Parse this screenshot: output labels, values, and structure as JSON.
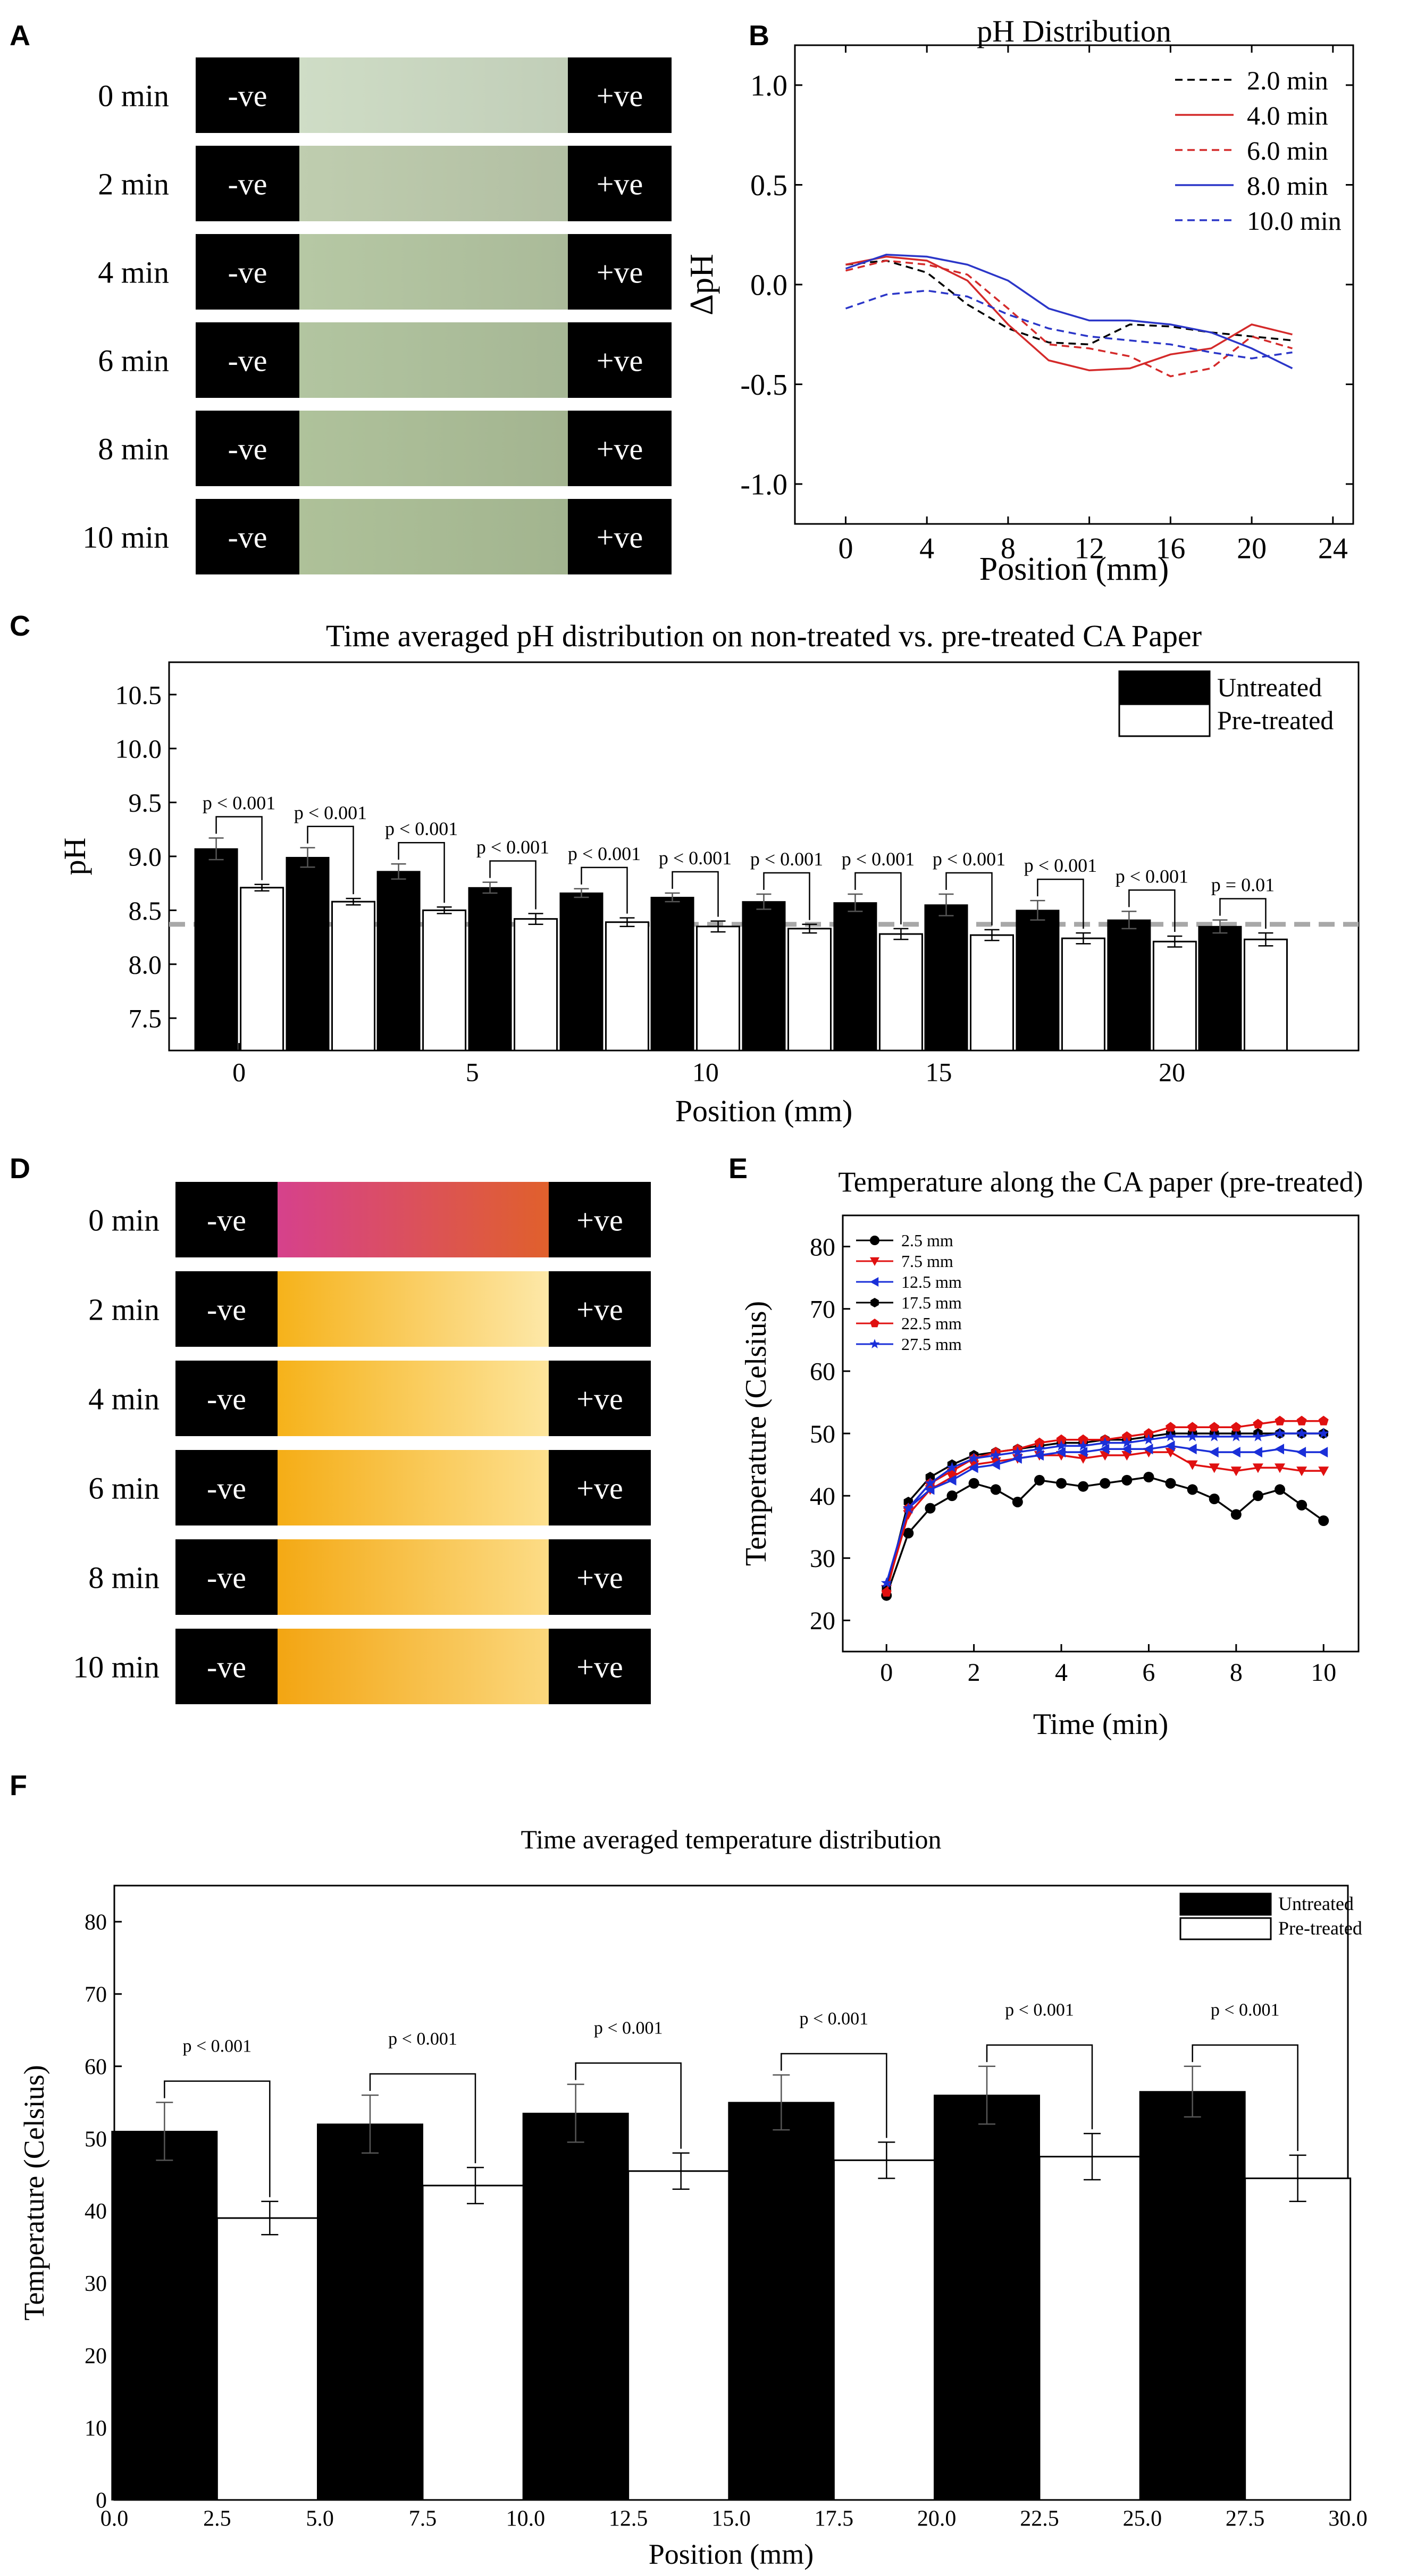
{
  "panel_letters": {
    "a": "A",
    "b": "B",
    "c": "C",
    "d": "D",
    "e": "E",
    "f": "F"
  },
  "strips": {
    "neg_label": "-ve",
    "pos_label": "+ve",
    "times": [
      "0 min",
      "2 min",
      "4 min",
      "6 min",
      "8 min",
      "10 min"
    ],
    "ph_strip_colors": [
      "#c9d7c0",
      "#b9c7aa",
      "#b1c29f",
      "#adbf9b",
      "#aabc96",
      "#a9bb95"
    ],
    "thermal_strip_colors": [
      [
        "#d6418c",
        "#e0602c"
      ],
      [
        "#f6b21a",
        "#fde8a8"
      ],
      [
        "#f6b21a",
        "#fde59c"
      ],
      [
        "#f5ad16",
        "#fde08e"
      ],
      [
        "#f4a914",
        "#fcdc86"
      ],
      [
        "#f3a512",
        "#fbd77c"
      ]
    ]
  },
  "chart_data": [
    {
      "panel": "B",
      "type": "line",
      "title": "pH Distribution",
      "xlabel": "Position (mm)",
      "ylabel": "ΔpH",
      "xlim": [
        -2.5,
        25
      ],
      "ylim": [
        -1.2,
        1.2
      ],
      "xticks": [
        0,
        4,
        8,
        12,
        16,
        20,
        24
      ],
      "yticks": [
        1.0,
        0.5,
        0.0,
        -0.5,
        -1.0
      ],
      "ytick_labels": [
        "1.0",
        "0.5",
        "0.0",
        "-0.5",
        "-1.0"
      ],
      "legend_position": "top-right",
      "series": [
        {
          "name": "2.0 min",
          "color": "#000000",
          "dash": true,
          "x": [
            0,
            2,
            4,
            6,
            8,
            10,
            12,
            14,
            16,
            18,
            20,
            22
          ],
          "y": [
            0.1,
            0.12,
            0.06,
            -0.1,
            -0.22,
            -0.29,
            -0.3,
            -0.2,
            -0.21,
            -0.24,
            -0.26,
            -0.28
          ]
        },
        {
          "name": "4.0 min",
          "color": "#d42a2a",
          "dash": false,
          "x": [
            0,
            2,
            4,
            6,
            8,
            10,
            12,
            14,
            16,
            18,
            20,
            22
          ],
          "y": [
            0.1,
            0.14,
            0.12,
            0.02,
            -0.2,
            -0.38,
            -0.43,
            -0.42,
            -0.35,
            -0.32,
            -0.2,
            -0.25
          ]
        },
        {
          "name": "6.0 min",
          "color": "#d42a2a",
          "dash": true,
          "x": [
            0,
            2,
            4,
            6,
            8,
            10,
            12,
            14,
            16,
            18,
            20,
            22
          ],
          "y": [
            0.07,
            0.12,
            0.1,
            0.05,
            -0.12,
            -0.3,
            -0.32,
            -0.36,
            -0.46,
            -0.42,
            -0.26,
            -0.32
          ]
        },
        {
          "name": "8.0 min",
          "color": "#2b36c8",
          "dash": false,
          "x": [
            0,
            2,
            4,
            6,
            8,
            10,
            12,
            14,
            16,
            18,
            20,
            22
          ],
          "y": [
            0.08,
            0.15,
            0.14,
            0.1,
            0.02,
            -0.12,
            -0.18,
            -0.18,
            -0.2,
            -0.24,
            -0.32,
            -0.42
          ]
        },
        {
          "name": "10.0 min",
          "color": "#2b36c8",
          "dash": true,
          "x": [
            0,
            2,
            4,
            6,
            8,
            10,
            12,
            14,
            16,
            18,
            20,
            22
          ],
          "y": [
            -0.12,
            -0.05,
            -0.03,
            -0.06,
            -0.15,
            -0.22,
            -0.26,
            -0.28,
            -0.3,
            -0.34,
            -0.37,
            -0.34
          ]
        }
      ]
    },
    {
      "panel": "C",
      "type": "bar",
      "title": "Time averaged pH distribution on non-treated vs. pre-treated CA Paper",
      "xlabel": "Position (mm)",
      "ylabel": "pH",
      "xlim": [
        -1.5,
        24
      ],
      "ylim": [
        7.2,
        10.8
      ],
      "yticks": [
        7.5,
        8.0,
        8.5,
        9.0,
        9.5,
        10.0,
        10.5
      ],
      "ytick_labels": [
        "7.5",
        "8.0",
        "8.5",
        "9.0",
        "9.5",
        "10.0",
        "10.5"
      ],
      "xticks": [
        0,
        5,
        10,
        15,
        20
      ],
      "positions": [
        0,
        1.96,
        3.91,
        5.87,
        7.83,
        9.78,
        11.74,
        13.7,
        15.65,
        17.61,
        19.57,
        21.52
      ],
      "reference_line": 8.37,
      "legend_position": "top-right",
      "series": [
        {
          "name": "Untreated",
          "values": [
            9.07,
            8.99,
            8.86,
            8.71,
            8.66,
            8.62,
            8.58,
            8.57,
            8.55,
            8.5,
            8.41,
            8.35
          ],
          "errors": [
            0.1,
            0.09,
            0.07,
            0.05,
            0.04,
            0.04,
            0.07,
            0.08,
            0.1,
            0.09,
            0.08,
            0.06
          ]
        },
        {
          "name": "Pre-treated",
          "values": [
            8.71,
            8.58,
            8.5,
            8.42,
            8.39,
            8.35,
            8.33,
            8.28,
            8.27,
            8.24,
            8.21,
            8.23
          ],
          "errors": [
            0.03,
            0.03,
            0.03,
            0.05,
            0.04,
            0.05,
            0.04,
            0.05,
            0.05,
            0.05,
            0.05,
            0.06
          ]
        }
      ],
      "pvalues": [
        "p < 0.001",
        "p < 0.001",
        "p < 0.001",
        "p < 0.001",
        "p < 0.001",
        "p < 0.001",
        "p < 0.001",
        "p < 0.001",
        "p < 0.001",
        "p < 0.001",
        "p < 0.001",
        "p = 0.01"
      ]
    },
    {
      "panel": "E",
      "type": "line",
      "title": "Temperature along the CA paper (pre-treated)",
      "xlabel": "Time (min)",
      "ylabel": "Temperature (Celsius)",
      "xlim": [
        -1,
        10.8
      ],
      "ylim": [
        15,
        85
      ],
      "xticks": [
        0,
        2,
        4,
        6,
        8,
        10
      ],
      "yticks": [
        20,
        30,
        40,
        50,
        60,
        70,
        80
      ],
      "legend_position": "top-left",
      "x": [
        0,
        0.5,
        1,
        1.5,
        2,
        2.5,
        3,
        3.5,
        4,
        4.5,
        5,
        5.5,
        6,
        6.5,
        7,
        7.5,
        8,
        8.5,
        9,
        9.5,
        10
      ],
      "series": [
        {
          "name": "2.5 mm",
          "color": "#000000",
          "marker": "circle",
          "values": [
            24,
            34,
            38,
            40,
            42,
            41,
            39,
            42.5,
            42,
            41.5,
            42,
            42.5,
            43,
            42,
            41,
            39.5,
            37,
            40,
            41,
            38.5,
            36
          ]
        },
        {
          "name": "7.5 mm",
          "color": "#e01010",
          "marker": "triangle-down",
          "values": [
            25,
            37,
            41,
            43,
            45,
            45.5,
            46,
            46.5,
            46.5,
            46,
            46.5,
            46.5,
            47,
            47,
            45,
            44.5,
            44,
            44.5,
            44.5,
            44,
            44
          ]
        },
        {
          "name": "12.5 mm",
          "color": "#1a2fd8",
          "marker": "triangle-left",
          "values": [
            25.5,
            38,
            41,
            42.5,
            44.5,
            45,
            46,
            46.5,
            47,
            47,
            47.5,
            47.5,
            47.5,
            48,
            47.5,
            47,
            47,
            47,
            47.5,
            47,
            47
          ]
        },
        {
          "name": "17.5 mm",
          "color": "#000000",
          "marker": "hexagon",
          "values": [
            25,
            39,
            43,
            45,
            46.5,
            47,
            47.5,
            48,
            48.5,
            48.5,
            49,
            49,
            49.5,
            50,
            50,
            50,
            50,
            50,
            50,
            50,
            50
          ]
        },
        {
          "name": "22.5 mm",
          "color": "#e01010",
          "marker": "pentagon",
          "values": [
            24.5,
            38,
            42,
            44,
            46,
            47,
            47.5,
            48.5,
            49,
            49,
            49,
            49.5,
            50,
            51,
            51,
            51,
            51,
            51.5,
            52,
            52,
            52
          ]
        },
        {
          "name": "27.5 mm",
          "color": "#1a2fd8",
          "marker": "star",
          "values": [
            26,
            38,
            42,
            44.5,
            46,
            46.5,
            47,
            47.5,
            48,
            48,
            48.5,
            48.5,
            49,
            49.5,
            49.5,
            49.5,
            49.5,
            49.5,
            50,
            50,
            50
          ]
        }
      ]
    },
    {
      "panel": "F",
      "type": "bar",
      "title": "Time averaged temperature distribution",
      "xlabel": "Position (mm)",
      "ylabel": "Temperature (Celsius)",
      "xlim": [
        0,
        30
      ],
      "ylim": [
        0,
        85
      ],
      "xticks": [
        0,
        2.5,
        5,
        7.5,
        10,
        12.5,
        15,
        17.5,
        20,
        22.5,
        25,
        27.5,
        30
      ],
      "xtick_labels": [
        "0.0",
        "2.5",
        "5.0",
        "7.5",
        "10.0",
        "12.5",
        "15.0",
        "17.5",
        "20.0",
        "22.5",
        "25.0",
        "27.5",
        "30.0"
      ],
      "yticks": [
        0,
        10,
        20,
        30,
        40,
        50,
        60,
        70,
        80
      ],
      "positions": [
        2.5,
        7.5,
        12.5,
        17.5,
        22.5,
        27.5
      ],
      "legend_position": "top-right",
      "series": [
        {
          "name": "Untreated",
          "values": [
            51,
            52,
            53.5,
            55,
            56,
            56.5
          ],
          "errors": [
            4,
            4,
            4,
            3.8,
            4,
            3.5
          ]
        },
        {
          "name": "Pre-treated",
          "values": [
            39,
            43.5,
            45.5,
            47,
            47.5,
            44.5
          ],
          "errors": [
            2.3,
            2.5,
            2.5,
            2.5,
            3.2,
            3.2
          ]
        }
      ],
      "pvalues": [
        "p < 0.001",
        "p < 0.001",
        "p < 0.001",
        "p < 0.001",
        "p < 0.001",
        "p < 0.001"
      ]
    }
  ]
}
